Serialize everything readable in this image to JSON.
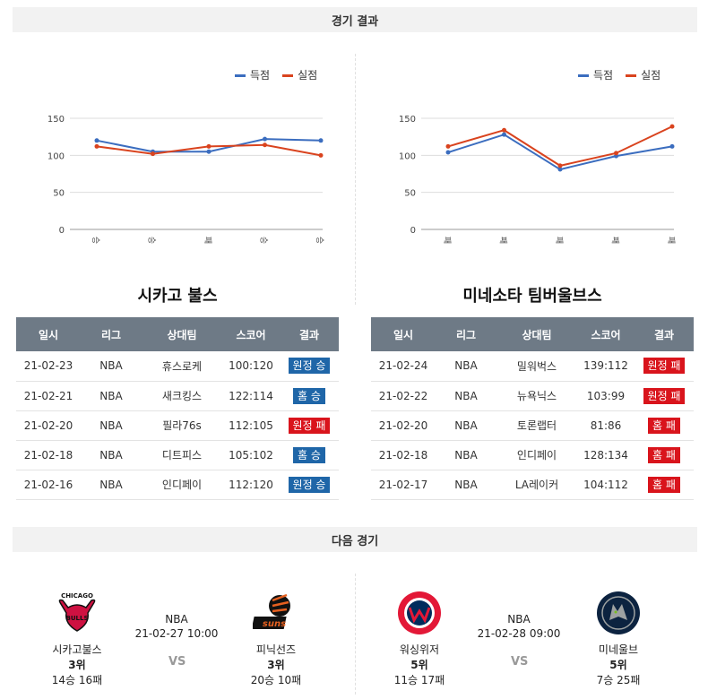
{
  "sections": {
    "results_title": "경기 결과",
    "next_title": "다음 경기"
  },
  "colors": {
    "scored": "#3b6dbf",
    "allowed": "#d9431e",
    "win": "#1f66a8",
    "loss": "#d9141c"
  },
  "legend": {
    "scored": "득점",
    "allowed": "실점"
  },
  "teams": {
    "chicago": {
      "name": "시카고 불스",
      "chart_data": {
        "type": "line",
        "categories": [
          "승",
          "승",
          "패",
          "승",
          "승"
        ],
        "series": [
          {
            "name": "득점",
            "values": [
              120,
              105,
              105,
              122,
              120
            ]
          },
          {
            "name": "실점",
            "values": [
              112,
              102,
              112,
              114,
              100
            ]
          }
        ],
        "yticks": [
          0,
          50,
          100,
          150
        ],
        "ylim": [
          0,
          150
        ],
        "legend_position": "top-right"
      },
      "table_headers": [
        "일시",
        "리그",
        "상대팀",
        "스코어",
        "결과"
      ],
      "games": [
        {
          "date": "21-02-23",
          "league": "NBA",
          "opponent": "휴스로케",
          "score": "100:120",
          "result": "원정 승",
          "win": true
        },
        {
          "date": "21-02-21",
          "league": "NBA",
          "opponent": "새크킹스",
          "score": "122:114",
          "result": "홈 승",
          "win": true
        },
        {
          "date": "21-02-20",
          "league": "NBA",
          "opponent": "필라76s",
          "score": "112:105",
          "result": "원정 패",
          "win": false
        },
        {
          "date": "21-02-18",
          "league": "NBA",
          "opponent": "디트피스",
          "score": "105:102",
          "result": "홈 승",
          "win": true
        },
        {
          "date": "21-02-16",
          "league": "NBA",
          "opponent": "인디페이",
          "score": "112:120",
          "result": "원정 승",
          "win": true
        }
      ]
    },
    "minnesota": {
      "name": "미네소타 팀버울브스",
      "chart_data": {
        "type": "line",
        "categories": [
          "패",
          "패",
          "패",
          "패",
          "패"
        ],
        "series": [
          {
            "name": "득점",
            "values": [
              104,
              128,
              81,
              99,
              112
            ]
          },
          {
            "name": "실점",
            "values": [
              112,
              134,
              86,
              103,
              139
            ]
          }
        ],
        "yticks": [
          0,
          50,
          100,
          150
        ],
        "ylim": [
          0,
          150
        ],
        "legend_position": "top-right"
      },
      "table_headers": [
        "일시",
        "리그",
        "상대팀",
        "스코어",
        "결과"
      ],
      "games": [
        {
          "date": "21-02-24",
          "league": "NBA",
          "opponent": "밀워벅스",
          "score": "139:112",
          "result": "원정 패",
          "win": false
        },
        {
          "date": "21-02-22",
          "league": "NBA",
          "opponent": "뉴욕닉스",
          "score": "103:99",
          "result": "원정 패",
          "win": false
        },
        {
          "date": "21-02-20",
          "league": "NBA",
          "opponent": "토론랩터",
          "score": "81:86",
          "result": "홈 패",
          "win": false
        },
        {
          "date": "21-02-18",
          "league": "NBA",
          "opponent": "인디페이",
          "score": "128:134",
          "result": "홈 패",
          "win": false
        },
        {
          "date": "21-02-17",
          "league": "NBA",
          "opponent": "LA레이커",
          "score": "104:112",
          "result": "홈 패",
          "win": false
        }
      ]
    }
  },
  "next_games": [
    {
      "league": "NBA",
      "datetime": "21-02-27 10:00",
      "vs": "VS",
      "home": {
        "name": "시카고불스",
        "rank": "3위",
        "record": "14승 16패",
        "logo_icon": "chicago-bulls-logo"
      },
      "away": {
        "name": "피닉선즈",
        "rank": "3위",
        "record": "20승 10패",
        "logo_icon": "phoenix-suns-logo"
      }
    },
    {
      "league": "NBA",
      "datetime": "21-02-28 09:00",
      "vs": "VS",
      "home": {
        "name": "워싱위저",
        "rank": "5위",
        "record": "11승 17패",
        "logo_icon": "washington-wizards-logo"
      },
      "away": {
        "name": "미네울브",
        "rank": "5위",
        "record": "7승 25패",
        "logo_icon": "minnesota-timberwolves-logo"
      }
    }
  ]
}
